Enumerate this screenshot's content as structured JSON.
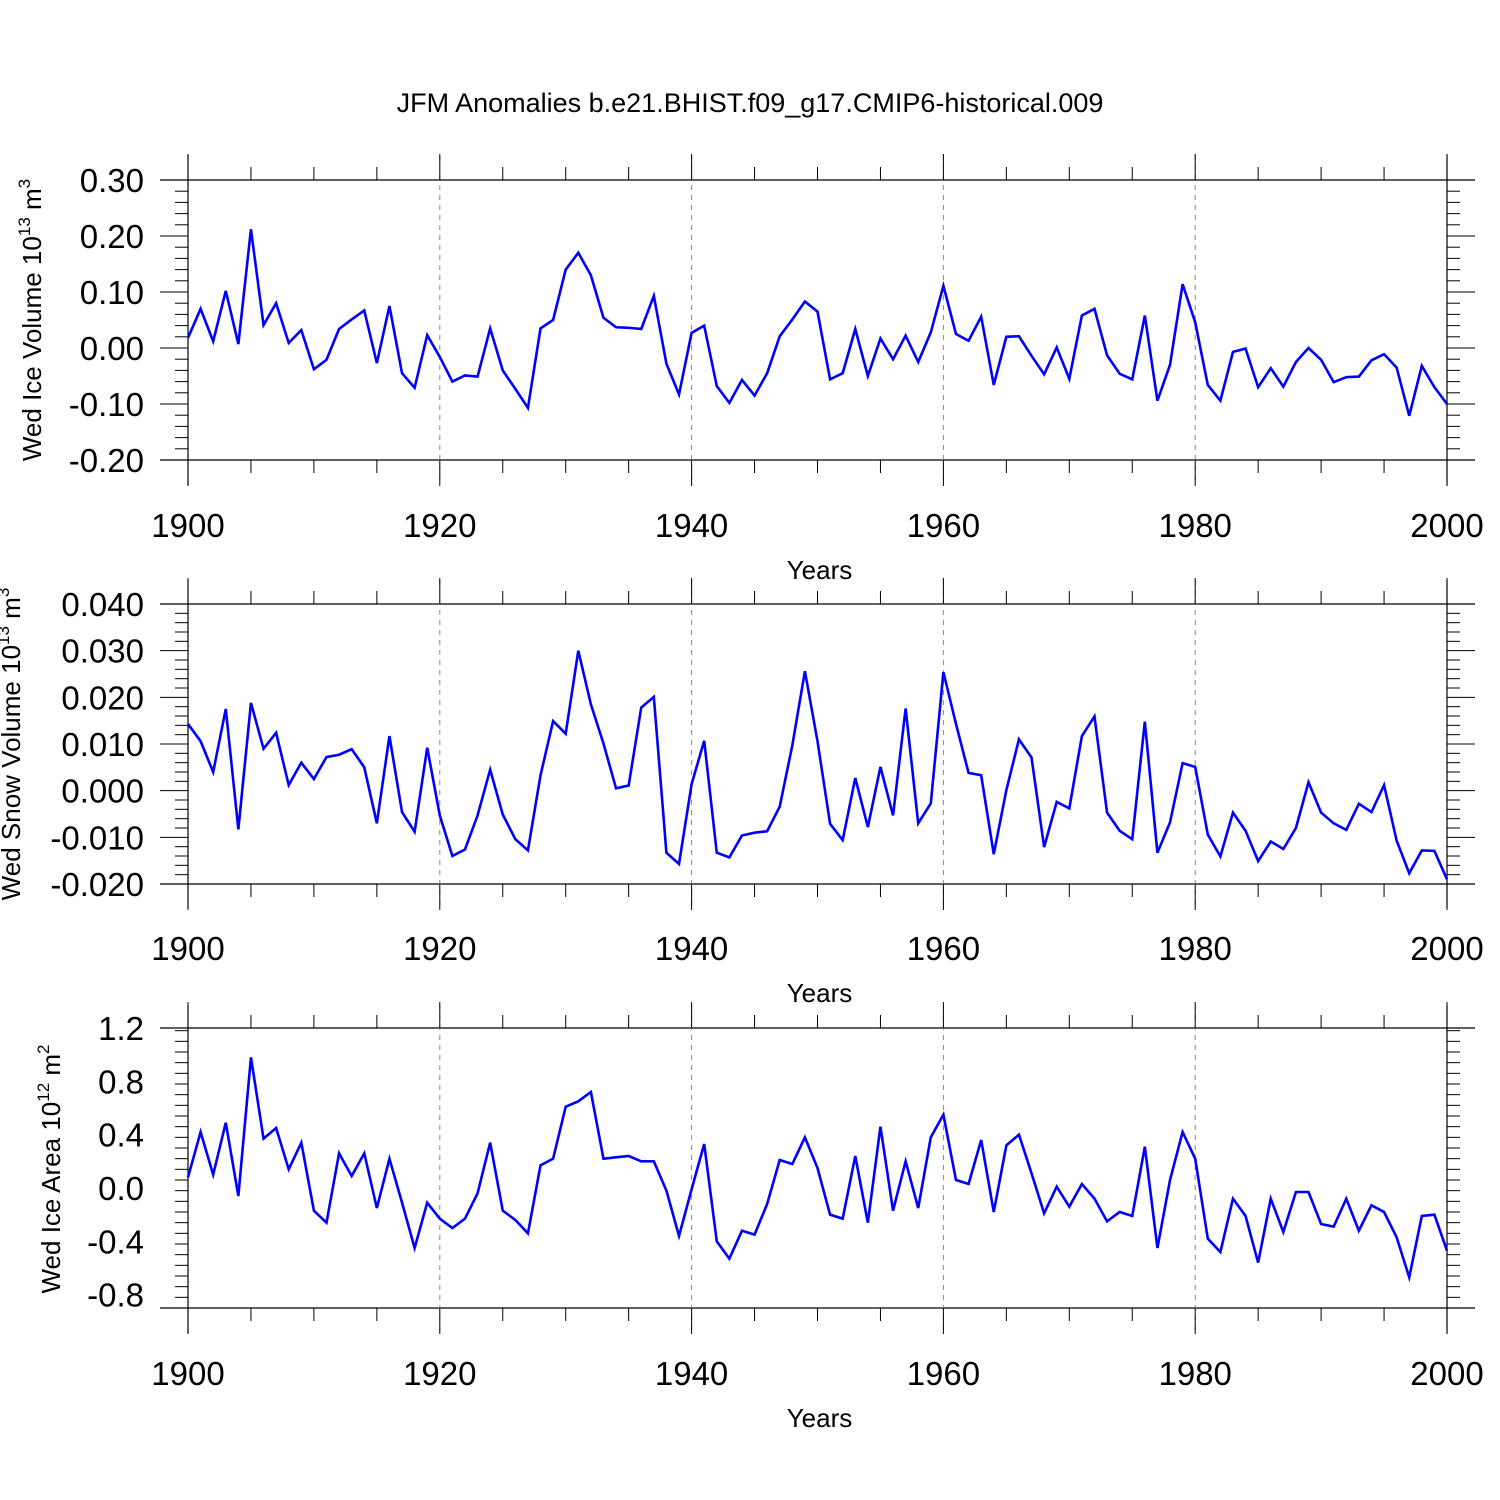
{
  "title": "JFM Anomalies b.e21.BHIST.f09_g17.CMIP6-historical.009",
  "line_color": "#0000ff",
  "chart_data": [
    {
      "type": "line",
      "ylabel": {
        "base": "Wed Ice Volume 10",
        "exp": "13",
        "unit": " m",
        "unit_exp": "3"
      },
      "xlabel": "Years",
      "xlim": [
        1900,
        2000
      ],
      "xticks": [
        1900,
        1920,
        1940,
        1960,
        1980,
        2000
      ],
      "xtick_labels": [
        "1900",
        "1920",
        "1940",
        "1960",
        "1980",
        "2000"
      ],
      "ylim": [
        -0.2,
        0.3
      ],
      "yticks": [
        -0.2,
        -0.1,
        0.0,
        0.1,
        0.2,
        0.3
      ],
      "ytick_labels": [
        "-0.20",
        "-0.10",
        "0.00",
        "0.10",
        "0.20",
        "0.30"
      ],
      "series": [
        {
          "name": "Wed Ice Volume",
          "x_start": 1900,
          "values": [
            0.018,
            0.07,
            0.012,
            0.102,
            0.007,
            0.212,
            0.041,
            0.08,
            0.009,
            0.032,
            -0.038,
            -0.021,
            0.034,
            0.051,
            0.067,
            -0.027,
            0.075,
            -0.045,
            -0.071,
            0.023,
            -0.016,
            -0.06,
            -0.049,
            -0.051,
            0.035,
            -0.04,
            -0.073,
            -0.107,
            0.035,
            0.05,
            0.14,
            0.17,
            0.13,
            0.054,
            0.037,
            0.036,
            0.034,
            0.093,
            -0.028,
            -0.083,
            0.027,
            0.04,
            -0.068,
            -0.098,
            -0.057,
            -0.085,
            -0.045,
            0.021,
            0.051,
            0.083,
            0.065,
            -0.056,
            -0.045,
            0.034,
            -0.05,
            0.017,
            -0.02,
            0.022,
            -0.025,
            0.028,
            0.111,
            0.025,
            0.013,
            0.056,
            -0.066,
            0.02,
            0.021,
            -0.014,
            -0.047,
            0.001,
            -0.055,
            0.058,
            0.07,
            -0.013,
            -0.046,
            -0.056,
            0.058,
            -0.094,
            -0.03,
            0.114,
            0.046,
            -0.066,
            -0.094,
            -0.007,
            -0.001,
            -0.07,
            -0.036,
            -0.069,
            -0.025,
            0.0,
            -0.021,
            -0.061,
            -0.052,
            -0.051,
            -0.022,
            -0.011,
            -0.035,
            -0.121,
            -0.032,
            -0.07,
            -0.1
          ]
        }
      ]
    },
    {
      "type": "line",
      "ylabel": {
        "base": "Wed Snow Volume 10",
        "exp": "13",
        "unit": " m",
        "unit_exp": "3"
      },
      "xlabel": "Years",
      "xlim": [
        1900,
        2000
      ],
      "xticks": [
        1900,
        1920,
        1940,
        1960,
        1980,
        2000
      ],
      "xtick_labels": [
        "1900",
        "1920",
        "1940",
        "1960",
        "1980",
        "2000"
      ],
      "ylim": [
        -0.02,
        0.04
      ],
      "yticks": [
        -0.02,
        -0.01,
        0.0,
        0.01,
        0.02,
        0.03,
        0.04
      ],
      "ytick_labels": [
        "-0.020",
        "-0.010",
        "0.000",
        "0.010",
        "0.020",
        "0.030",
        "0.040"
      ],
      "series": [
        {
          "name": "Wed Snow Volume",
          "x_start": 1900,
          "values": [
            0.0143,
            0.0106,
            0.004,
            0.0175,
            -0.0083,
            0.0188,
            0.009,
            0.0124,
            0.0012,
            0.006,
            0.0025,
            0.0072,
            0.0077,
            0.0089,
            0.005,
            -0.007,
            0.0117,
            -0.0046,
            -0.0088,
            0.0092,
            -0.0053,
            -0.014,
            -0.0126,
            -0.0053,
            0.0045,
            -0.0051,
            -0.0104,
            -0.0128,
            0.0033,
            0.0149,
            0.0122,
            0.03,
            0.0185,
            0.0101,
            0.0005,
            0.0011,
            0.0178,
            0.0201,
            -0.0133,
            -0.0157,
            0.0014,
            0.0107,
            -0.0133,
            -0.0143,
            -0.0096,
            -0.009,
            -0.0087,
            -0.0034,
            0.0097,
            0.0256,
            0.0106,
            -0.0071,
            -0.0106,
            0.0027,
            -0.0078,
            0.0051,
            -0.0053,
            0.0176,
            -0.007,
            -0.0027,
            0.0254,
            0.0143,
            0.0038,
            0.0033,
            -0.0136,
            0.0001,
            0.011,
            0.0071,
            -0.0121,
            -0.0024,
            -0.0038,
            0.0117,
            0.0159,
            -0.0047,
            -0.0086,
            -0.0104,
            0.0148,
            -0.0133,
            -0.0068,
            0.0059,
            0.0051,
            -0.0094,
            -0.0141,
            -0.0047,
            -0.0086,
            -0.0151,
            -0.0109,
            -0.0125,
            -0.008,
            0.0018,
            -0.0047,
            -0.007,
            -0.0084,
            -0.0028,
            -0.0046,
            0.0012,
            -0.0107,
            -0.0177,
            -0.0128,
            -0.0129,
            -0.019
          ]
        }
      ]
    },
    {
      "type": "line",
      "ylabel": {
        "base": "Wed Ice Area 10",
        "exp": "12",
        "unit": " m",
        "unit_exp": "2"
      },
      "xlabel": "Years",
      "xlim": [
        1900,
        2000
      ],
      "xticks": [
        1900,
        1920,
        1940,
        1960,
        1980,
        2000
      ],
      "xtick_labels": [
        "1900",
        "1920",
        "1940",
        "1960",
        "1980",
        "2000"
      ],
      "ylim": [
        -0.9,
        1.2
      ],
      "yticks": [
        -0.8,
        -0.4,
        0.0,
        0.4,
        0.8,
        1.2
      ],
      "ytick_labels": [
        "-0.8",
        "-0.4",
        "0.0",
        "0.4",
        "0.8",
        "1.2"
      ],
      "series": [
        {
          "name": "Wed Ice Area",
          "x_start": 1900,
          "values": [
            0.08,
            0.42,
            0.1,
            0.49,
            -0.06,
            0.98,
            0.37,
            0.45,
            0.14,
            0.34,
            -0.17,
            -0.26,
            0.26,
            0.09,
            0.26,
            -0.15,
            0.22,
            -0.11,
            -0.45,
            -0.11,
            -0.23,
            -0.3,
            -0.23,
            -0.04,
            0.34,
            -0.17,
            -0.24,
            -0.34,
            0.17,
            0.22,
            0.61,
            0.65,
            0.72,
            0.22,
            0.23,
            0.24,
            0.2,
            0.2,
            -0.02,
            -0.36,
            -0.01,
            0.33,
            -0.4,
            -0.53,
            -0.32,
            -0.35,
            -0.12,
            0.21,
            0.18,
            0.38,
            0.15,
            -0.2,
            -0.23,
            0.24,
            -0.26,
            0.46,
            -0.17,
            0.2,
            -0.15,
            0.38,
            0.55,
            0.06,
            0.03,
            0.36,
            -0.18,
            0.32,
            0.4,
            0.11,
            -0.19,
            0.01,
            -0.14,
            0.03,
            -0.08,
            -0.25,
            -0.18,
            -0.21,
            0.31,
            -0.45,
            0.06,
            0.42,
            0.22,
            -0.38,
            -0.48,
            -0.08,
            -0.21,
            -0.56,
            -0.08,
            -0.33,
            -0.03,
            -0.03,
            -0.27,
            -0.29,
            -0.08,
            -0.32,
            -0.13,
            -0.18,
            -0.37,
            -0.67,
            -0.21,
            -0.2,
            -0.47
          ]
        }
      ]
    }
  ]
}
